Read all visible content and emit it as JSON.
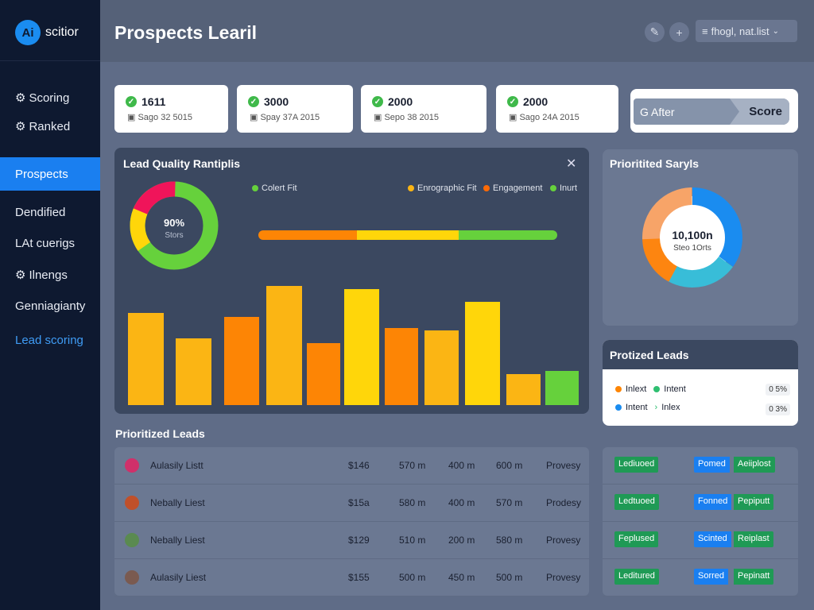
{
  "app": {
    "logo_badge": "Ai",
    "logo_text": "scitior"
  },
  "sidebar": {
    "items": [
      {
        "label": "Scoring",
        "icon": "⚙"
      },
      {
        "label": "Ranked",
        "icon": "⚙"
      },
      {
        "label": "Prospects"
      },
      {
        "label": "Dendified"
      },
      {
        "label": "LAt cuerigs"
      },
      {
        "label": "Ilnengs",
        "icon": "⚙"
      },
      {
        "label": "Genniagianty"
      },
      {
        "label": "Lead scoring"
      }
    ]
  },
  "header": {
    "title": "Prospects Learil",
    "select": "fhogl, nat.list"
  },
  "stats": [
    {
      "value": "1611",
      "date": "Sago 32 5015"
    },
    {
      "value": "3000",
      "date": "Spay 37A 2015"
    },
    {
      "value": "2000",
      "date": "Sepo 38 2015"
    },
    {
      "value": "2000",
      "date": "Sago 24A 2015"
    }
  ],
  "score_filter": {
    "input": "G After",
    "button": "Score"
  },
  "quality_panel": {
    "title": "Lead Quality Rantiplis",
    "donut_value": "90%",
    "donut_label": "Stors",
    "legend": [
      "Colert Fit",
      "Enrographic Fit",
      "Engagement",
      "Inurt"
    ],
    "colors": {
      "amber": "#fbb514",
      "orange": "#fd8505",
      "yellow": "#ffd60a",
      "green": "#66d13c",
      "pink": "#f0145a"
    }
  },
  "chart_data": {
    "type": "bar",
    "values": [
      116,
      84,
      111,
      150,
      78,
      146,
      97,
      94,
      130,
      39,
      43
    ],
    "colors": [
      "#fbb514",
      "#fbb514",
      "#fd8505",
      "#fbb514",
      "#fd8505",
      "#ffd60a",
      "#fd8505",
      "#fbb514",
      "#ffd60a",
      "#fbb514",
      "#66d13c"
    ]
  },
  "segments_panel": {
    "title": "Prioritited Saryls",
    "center_value": "10,100n",
    "center_label": "Steo 1Orts"
  },
  "prioritized_panel": {
    "title": "Protized Leads",
    "rows": [
      {
        "a": "Inlext",
        "b": "Intent",
        "value": "0 5%"
      },
      {
        "a": "Intent",
        "b": "Inlex",
        "value": "0 3%"
      }
    ]
  },
  "leads": {
    "title": "Prioritized Leads",
    "rows": [
      {
        "name": "Aulasily Listt",
        "price": "$146",
        "c1": "570 m",
        "c2": "400 m",
        "c3": "600 m",
        "status": "Provesy",
        "tag1": "Lediuoed",
        "tag2": "Pomed",
        "tag3": "Aeiiplost"
      },
      {
        "name": "Nebally Liest",
        "price": "$15a",
        "c1": "580 m",
        "c2": "400 m",
        "c3": "570 m",
        "status": "Prodesy",
        "tag1": "Ledtuoed",
        "tag2": "Fonned",
        "tag3": "Pepiputt"
      },
      {
        "name": "Nebally Liest",
        "price": "$129",
        "c1": "510 m",
        "c2": "200 m",
        "c3": "580 m",
        "status": "Provesy",
        "tag1": "Feplused",
        "tag2": "Scinted",
        "tag3": "Reiplast"
      },
      {
        "name": "Aulasily Liest",
        "price": "$155",
        "c1": "500 m",
        "c2": "450 m",
        "c3": "500 m",
        "status": "Provesy",
        "tag1": "Leditured",
        "tag2": "Sorred",
        "tag3": "Pepinatt"
      }
    ]
  }
}
